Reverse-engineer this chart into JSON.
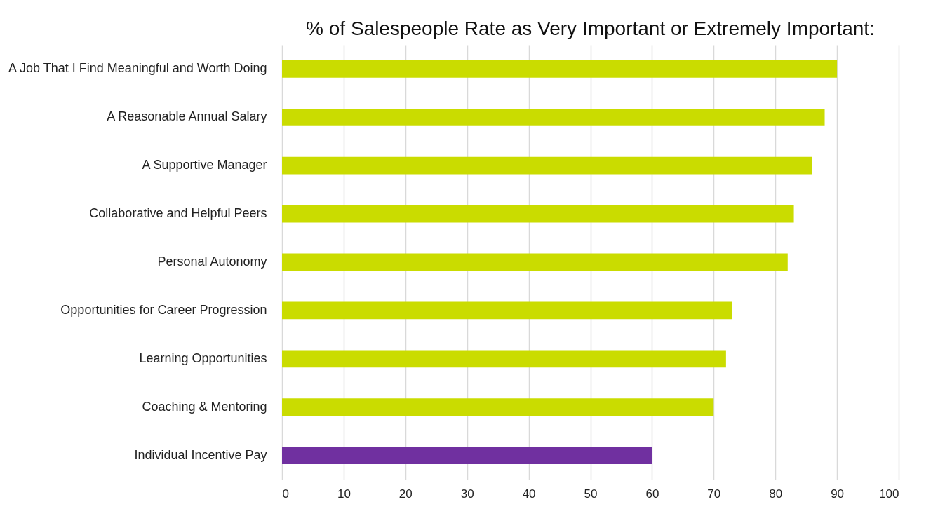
{
  "chart_data": {
    "type": "bar",
    "orientation": "horizontal",
    "title": "% of Salespeople Rate as Very Important or Extremely Important:",
    "categories": [
      "A Job That I Find Meaningful and Worth Doing",
      "A Reasonable Annual Salary",
      "A Supportive Manager",
      "Collaborative and Helpful Peers",
      "Personal Autonomy",
      "Opportunities for Career Progression",
      "Learning Opportunities",
      "Coaching & Mentoring",
      "Individual Incentive Pay"
    ],
    "values": [
      90,
      88,
      86,
      83,
      82,
      73,
      72,
      70,
      60
    ],
    "colors": [
      "#cadc00",
      "#cadc00",
      "#cadc00",
      "#cadc00",
      "#cadc00",
      "#cadc00",
      "#cadc00",
      "#cadc00",
      "#7030a0"
    ],
    "xlim": [
      0,
      100
    ],
    "xticks": [
      0,
      10,
      20,
      30,
      40,
      50,
      60,
      70,
      80,
      90,
      100
    ],
    "grid": "x"
  }
}
